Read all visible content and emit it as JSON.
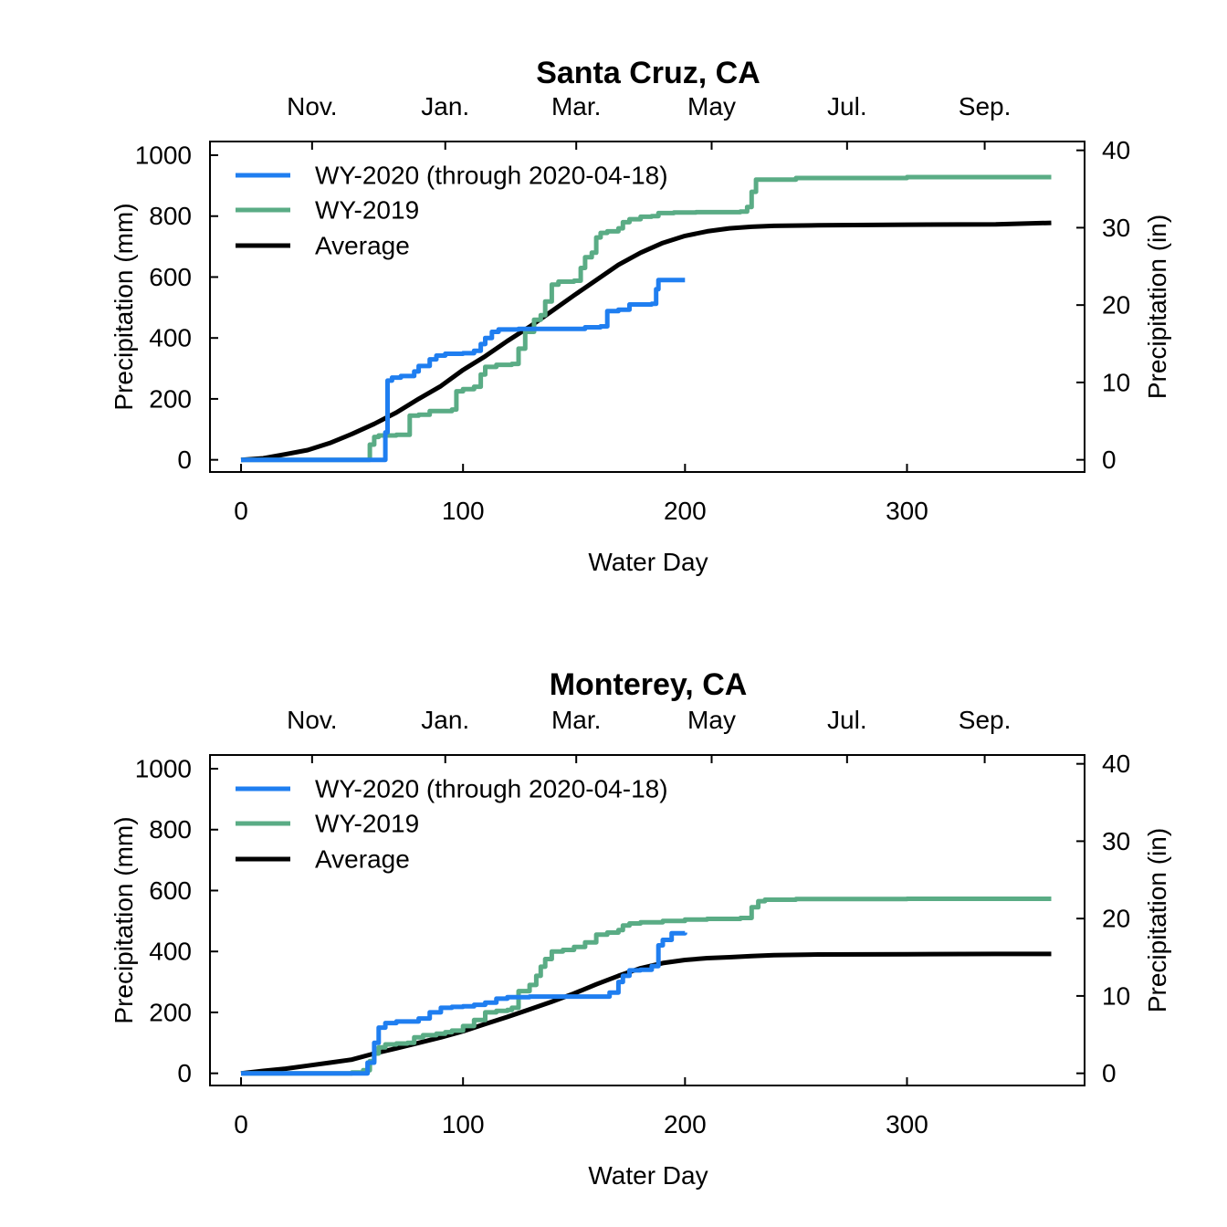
{
  "chart_data": [
    {
      "type": "line",
      "title": "Santa Cruz, CA",
      "xlabel": "Water Day",
      "ylabel": "Precipitation (mm)",
      "ylabel_right": "Precipitation (in)",
      "xlim": [
        -14,
        380
      ],
      "ylim": [
        -40,
        1045
      ],
      "ylim_right_in": [
        -1.575,
        41.14
      ],
      "x_ticks": [
        0,
        100,
        200,
        300
      ],
      "y_ticks": [
        0,
        200,
        400,
        600,
        800,
        1000
      ],
      "y_ticks_right": [
        0,
        10,
        20,
        30,
        40
      ],
      "month_labels": [
        {
          "label": "Nov.",
          "day": 32
        },
        {
          "label": "Jan.",
          "day": 92
        },
        {
          "label": "Mar.",
          "day": 151
        },
        {
          "label": "May",
          "day": 212
        },
        {
          "label": "Jul.",
          "day": 273
        },
        {
          "label": "Sep.",
          "day": 335
        }
      ],
      "grid": false,
      "legend_position": "top-left",
      "series": [
        {
          "name": "WY-2020 (through 2020-04-18)",
          "color": "#1f7ef0",
          "step": true,
          "points": [
            [
              0,
              0
            ],
            [
              63,
              0
            ],
            [
              65,
              90
            ],
            [
              66,
              260
            ],
            [
              68,
              270
            ],
            [
              72,
              275
            ],
            [
              78,
              290
            ],
            [
              80,
              308
            ],
            [
              85,
              330
            ],
            [
              88,
              342
            ],
            [
              92,
              348
            ],
            [
              100,
              350
            ],
            [
              105,
              358
            ],
            [
              108,
              380
            ],
            [
              110,
              400
            ],
            [
              113,
              420
            ],
            [
              116,
              428
            ],
            [
              125,
              430
            ],
            [
              150,
              430
            ],
            [
              155,
              435
            ],
            [
              162,
              438
            ],
            [
              165,
              488
            ],
            [
              170,
              493
            ],
            [
              175,
              510
            ],
            [
              185,
              512
            ],
            [
              187,
              560
            ],
            [
              188,
              590
            ],
            [
              200,
              590
            ]
          ]
        },
        {
          "name": "WY-2019",
          "color": "#5aac85",
          "step": true,
          "points": [
            [
              0,
              0
            ],
            [
              57,
              0
            ],
            [
              58,
              50
            ],
            [
              60,
              75
            ],
            [
              62,
              80
            ],
            [
              70,
              82
            ],
            [
              76,
              145
            ],
            [
              80,
              148
            ],
            [
              85,
              160
            ],
            [
              95,
              165
            ],
            [
              97,
              225
            ],
            [
              100,
              232
            ],
            [
              105,
              240
            ],
            [
              108,
              280
            ],
            [
              110,
              305
            ],
            [
              115,
              312
            ],
            [
              122,
              315
            ],
            [
              125,
              365
            ],
            [
              128,
              420
            ],
            [
              132,
              460
            ],
            [
              135,
              475
            ],
            [
              137,
              520
            ],
            [
              140,
              575
            ],
            [
              143,
              585
            ],
            [
              150,
              588
            ],
            [
              153,
              630
            ],
            [
              155,
              665
            ],
            [
              158,
              680
            ],
            [
              160,
              730
            ],
            [
              162,
              745
            ],
            [
              165,
              750
            ],
            [
              170,
              760
            ],
            [
              172,
              780
            ],
            [
              175,
              790
            ],
            [
              180,
              798
            ],
            [
              185,
              800
            ],
            [
              188,
              810
            ],
            [
              195,
              812
            ],
            [
              205,
              813
            ],
            [
              225,
              815
            ],
            [
              228,
              830
            ],
            [
              230,
              880
            ],
            [
              232,
              920
            ],
            [
              250,
              925
            ],
            [
              300,
              928
            ],
            [
              365,
              928
            ]
          ]
        },
        {
          "name": "Average",
          "color": "#000000",
          "step": false,
          "points": [
            [
              0,
              0
            ],
            [
              10,
              5
            ],
            [
              20,
              18
            ],
            [
              30,
              32
            ],
            [
              40,
              55
            ],
            [
              50,
              85
            ],
            [
              60,
              118
            ],
            [
              70,
              155
            ],
            [
              80,
              200
            ],
            [
              90,
              242
            ],
            [
              100,
              295
            ],
            [
              110,
              340
            ],
            [
              120,
              390
            ],
            [
              130,
              437
            ],
            [
              140,
              488
            ],
            [
              150,
              540
            ],
            [
              160,
              590
            ],
            [
              170,
              640
            ],
            [
              180,
              680
            ],
            [
              190,
              712
            ],
            [
              200,
              735
            ],
            [
              210,
              750
            ],
            [
              220,
              760
            ],
            [
              230,
              765
            ],
            [
              240,
              768
            ],
            [
              260,
              770
            ],
            [
              300,
              772
            ],
            [
              340,
              773
            ],
            [
              365,
              778
            ]
          ]
        }
      ]
    },
    {
      "type": "line",
      "title": "Monterey, CA",
      "xlabel": "Water Day",
      "ylabel": "Precipitation (mm)",
      "ylabel_right": "Precipitation (in)",
      "xlim": [
        -14,
        380
      ],
      "ylim": [
        -40,
        1045
      ],
      "ylim_right_in": [
        -1.575,
        41.14
      ],
      "x_ticks": [
        0,
        100,
        200,
        300
      ],
      "y_ticks": [
        0,
        200,
        400,
        600,
        800,
        1000
      ],
      "y_ticks_right": [
        0,
        10,
        20,
        30,
        40
      ],
      "month_labels": [
        {
          "label": "Nov.",
          "day": 32
        },
        {
          "label": "Jan.",
          "day": 92
        },
        {
          "label": "Mar.",
          "day": 151
        },
        {
          "label": "May",
          "day": 212
        },
        {
          "label": "Jul.",
          "day": 273
        },
        {
          "label": "Sep.",
          "day": 335
        }
      ],
      "grid": false,
      "legend_position": "top-left",
      "series": [
        {
          "name": "WY-2020 (through 2020-04-18)",
          "color": "#1f7ef0",
          "step": true,
          "points": [
            [
              0,
              0
            ],
            [
              55,
              0
            ],
            [
              57,
              35
            ],
            [
              60,
              100
            ],
            [
              62,
              150
            ],
            [
              65,
              165
            ],
            [
              70,
              170
            ],
            [
              80,
              180
            ],
            [
              85,
              200
            ],
            [
              90,
              215
            ],
            [
              95,
              218
            ],
            [
              100,
              220
            ],
            [
              105,
              225
            ],
            [
              110,
              232
            ],
            [
              115,
              245
            ],
            [
              120,
              250
            ],
            [
              130,
              252
            ],
            [
              164,
              252
            ],
            [
              166,
              265
            ],
            [
              170,
              300
            ],
            [
              172,
              320
            ],
            [
              175,
              338
            ],
            [
              180,
              340
            ],
            [
              185,
              352
            ],
            [
              188,
              420
            ],
            [
              190,
              438
            ],
            [
              194,
              460
            ],
            [
              200,
              462
            ]
          ]
        },
        {
          "name": "WY-2019",
          "color": "#5aac85",
          "step": true,
          "points": [
            [
              0,
              0
            ],
            [
              50,
              3
            ],
            [
              55,
              10
            ],
            [
              58,
              40
            ],
            [
              60,
              65
            ],
            [
              62,
              85
            ],
            [
              65,
              95
            ],
            [
              70,
              98
            ],
            [
              75,
              100
            ],
            [
              78,
              118
            ],
            [
              82,
              125
            ],
            [
              88,
              130
            ],
            [
              92,
              135
            ],
            [
              95,
              140
            ],
            [
              100,
              155
            ],
            [
              105,
              175
            ],
            [
              110,
              200
            ],
            [
              115,
              205
            ],
            [
              120,
              208
            ],
            [
              122,
              215
            ],
            [
              125,
              270
            ],
            [
              130,
              290
            ],
            [
              133,
              320
            ],
            [
              135,
              350
            ],
            [
              137,
              375
            ],
            [
              140,
              400
            ],
            [
              145,
              405
            ],
            [
              150,
              415
            ],
            [
              155,
              430
            ],
            [
              160,
              455
            ],
            [
              165,
              462
            ],
            [
              170,
              470
            ],
            [
              172,
              485
            ],
            [
              175,
              492
            ],
            [
              180,
              496
            ],
            [
              190,
              500
            ],
            [
              200,
              505
            ],
            [
              210,
              507
            ],
            [
              225,
              510
            ],
            [
              230,
              545
            ],
            [
              233,
              565
            ],
            [
              236,
              570
            ],
            [
              250,
              572
            ],
            [
              300,
              573
            ],
            [
              365,
              573
            ]
          ]
        },
        {
          "name": "Average",
          "color": "#000000",
          "step": false,
          "points": [
            [
              0,
              0
            ],
            [
              10,
              8
            ],
            [
              20,
              15
            ],
            [
              30,
              25
            ],
            [
              40,
              35
            ],
            [
              50,
              45
            ],
            [
              60,
              65
            ],
            [
              70,
              82
            ],
            [
              80,
              100
            ],
            [
              90,
              118
            ],
            [
              100,
              138
            ],
            [
              110,
              162
            ],
            [
              120,
              185
            ],
            [
              130,
              210
            ],
            [
              140,
              235
            ],
            [
              150,
              262
            ],
            [
              160,
              292
            ],
            [
              170,
              320
            ],
            [
              180,
              345
            ],
            [
              190,
              362
            ],
            [
              200,
              372
            ],
            [
              210,
              378
            ],
            [
              220,
              381
            ],
            [
              230,
              385
            ],
            [
              240,
              388
            ],
            [
              260,
              390
            ],
            [
              300,
              391
            ],
            [
              340,
              392
            ],
            [
              365,
              392
            ]
          ]
        }
      ]
    }
  ]
}
